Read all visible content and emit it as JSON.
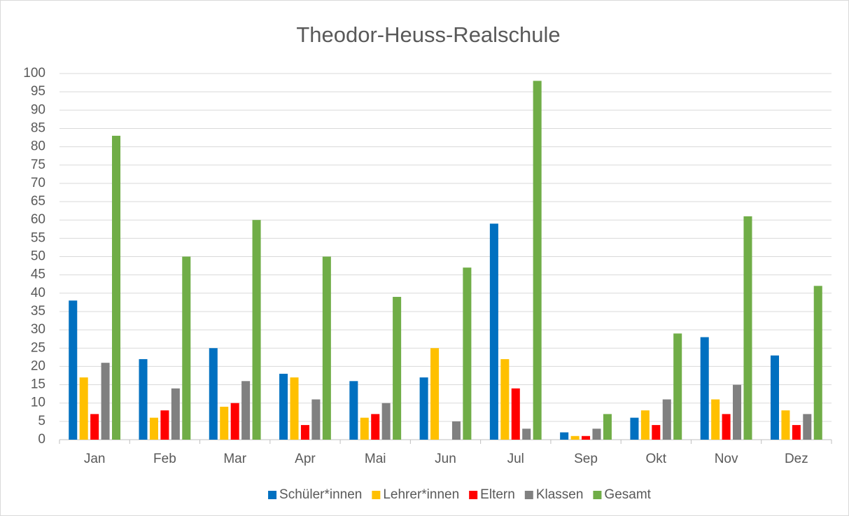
{
  "chart_data": {
    "type": "bar",
    "title": "Theodor-Heuss-Realschule",
    "categories": [
      "Jan",
      "Feb",
      "Mar",
      "Apr",
      "Mai",
      "Jun",
      "Jul",
      "Sep",
      "Okt",
      "Nov",
      "Dez"
    ],
    "series": [
      {
        "name": "Schüler*innen",
        "color": "#0070c0",
        "values": [
          38,
          22,
          25,
          18,
          16,
          17,
          59,
          2,
          6,
          28,
          23
        ]
      },
      {
        "name": "Lehrer*innen",
        "color": "#ffc000",
        "values": [
          17,
          6,
          9,
          17,
          6,
          25,
          22,
          1,
          8,
          11,
          8
        ]
      },
      {
        "name": "Eltern",
        "color": "#ff0000",
        "values": [
          7,
          8,
          10,
          4,
          7,
          0,
          14,
          1,
          4,
          7,
          4
        ]
      },
      {
        "name": "Klassen",
        "color": "#808080",
        "values": [
          21,
          14,
          16,
          11,
          10,
          5,
          3,
          3,
          11,
          15,
          7
        ]
      },
      {
        "name": "Gesamt",
        "color": "#70ad47",
        "values": [
          83,
          50,
          60,
          50,
          39,
          47,
          98,
          7,
          29,
          61,
          42
        ]
      }
    ],
    "ylim": [
      0,
      100
    ],
    "yticks": [
      0,
      5,
      10,
      15,
      20,
      25,
      30,
      35,
      40,
      45,
      50,
      55,
      60,
      65,
      70,
      75,
      80,
      85,
      90,
      95,
      100
    ],
    "grid": true,
    "legend": "bottom"
  }
}
